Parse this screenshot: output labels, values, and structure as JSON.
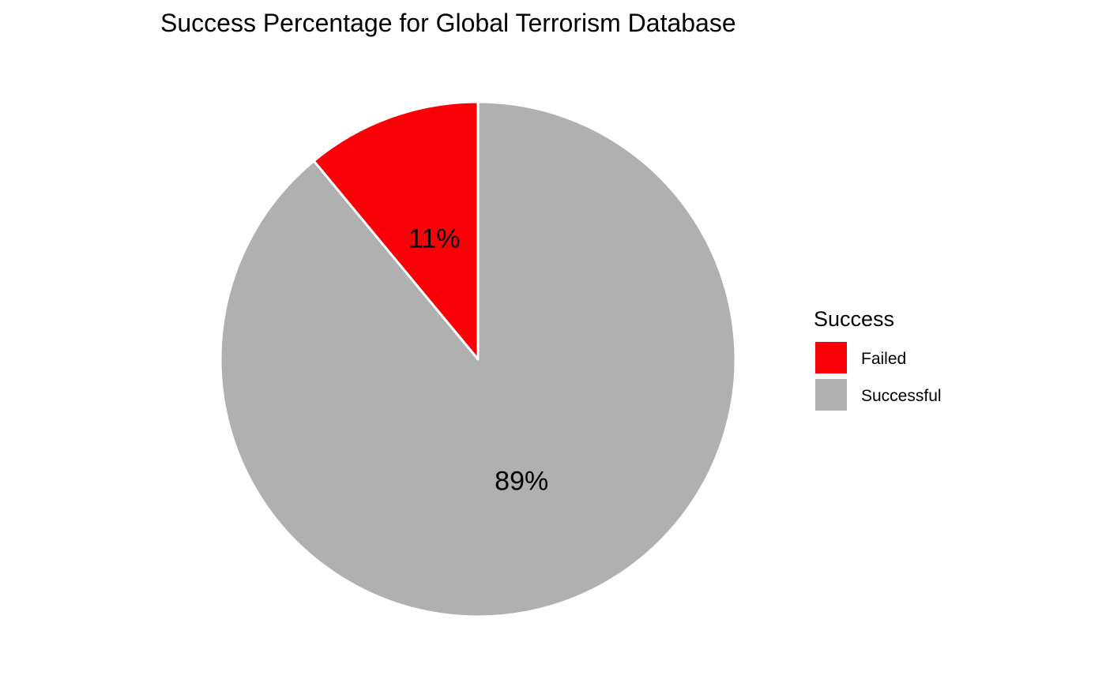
{
  "chart_data": {
    "type": "pie",
    "title": "Success Percentage for Global Terrorism Database",
    "slices": [
      {
        "label": "Failed",
        "value": 11,
        "value_label": "11%",
        "color": "#FA0007"
      },
      {
        "label": "Successful",
        "value": 89,
        "value_label": "89%",
        "color": "#B0B0B0"
      }
    ],
    "start_angle": "12 o'clock",
    "direction": "counter-clockwise",
    "legend": {
      "title": "Success",
      "position": "right",
      "entries": [
        "Failed",
        "Successful"
      ]
    },
    "slice_border_color": "#FFFFFF"
  }
}
